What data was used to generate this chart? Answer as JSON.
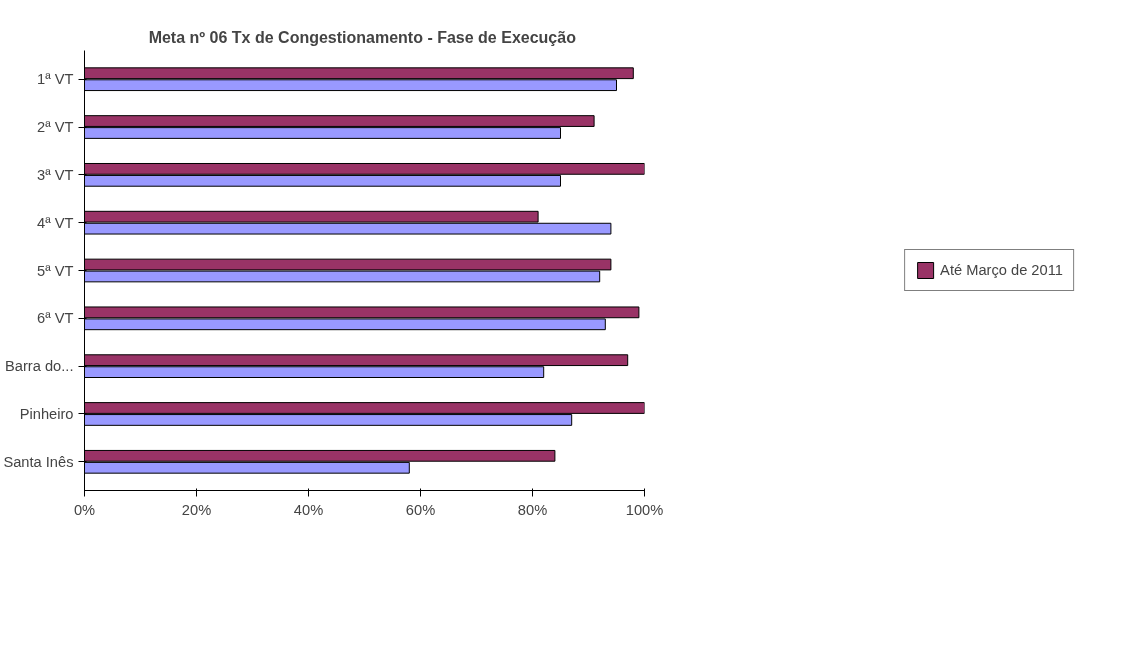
{
  "chart_data": {
    "type": "bar",
    "orientation": "horizontal",
    "title": "Meta nº 06 Tx de Congestionamento  - Fase de Execução",
    "categories": [
      "1ª VT",
      "2ª VT",
      "3ª VT",
      "4ª VT",
      "5ª VT",
      "6ª VT",
      "Barra do...",
      "Pinheiro",
      "Santa Inês"
    ],
    "series": [
      {
        "name": "Até Março de 2011",
        "color": "#993366",
        "values": [
          98,
          91,
          100,
          81,
          94,
          99,
          97,
          100,
          84
        ]
      },
      {
        "color": "#9999ff",
        "values": [
          95,
          85,
          85,
          94,
          92,
          93,
          82,
          87,
          58
        ]
      }
    ],
    "xlim": [
      0,
      100
    ],
    "xticks": [
      {
        "value": 0,
        "label": "0%"
      },
      {
        "value": 20,
        "label": "20%"
      },
      {
        "value": 40,
        "label": "40%"
      },
      {
        "value": 60,
        "label": "60%"
      },
      {
        "value": 80,
        "label": "80%"
      },
      {
        "value": 100,
        "label": "100%"
      }
    ],
    "grid": false,
    "legend": "right"
  }
}
